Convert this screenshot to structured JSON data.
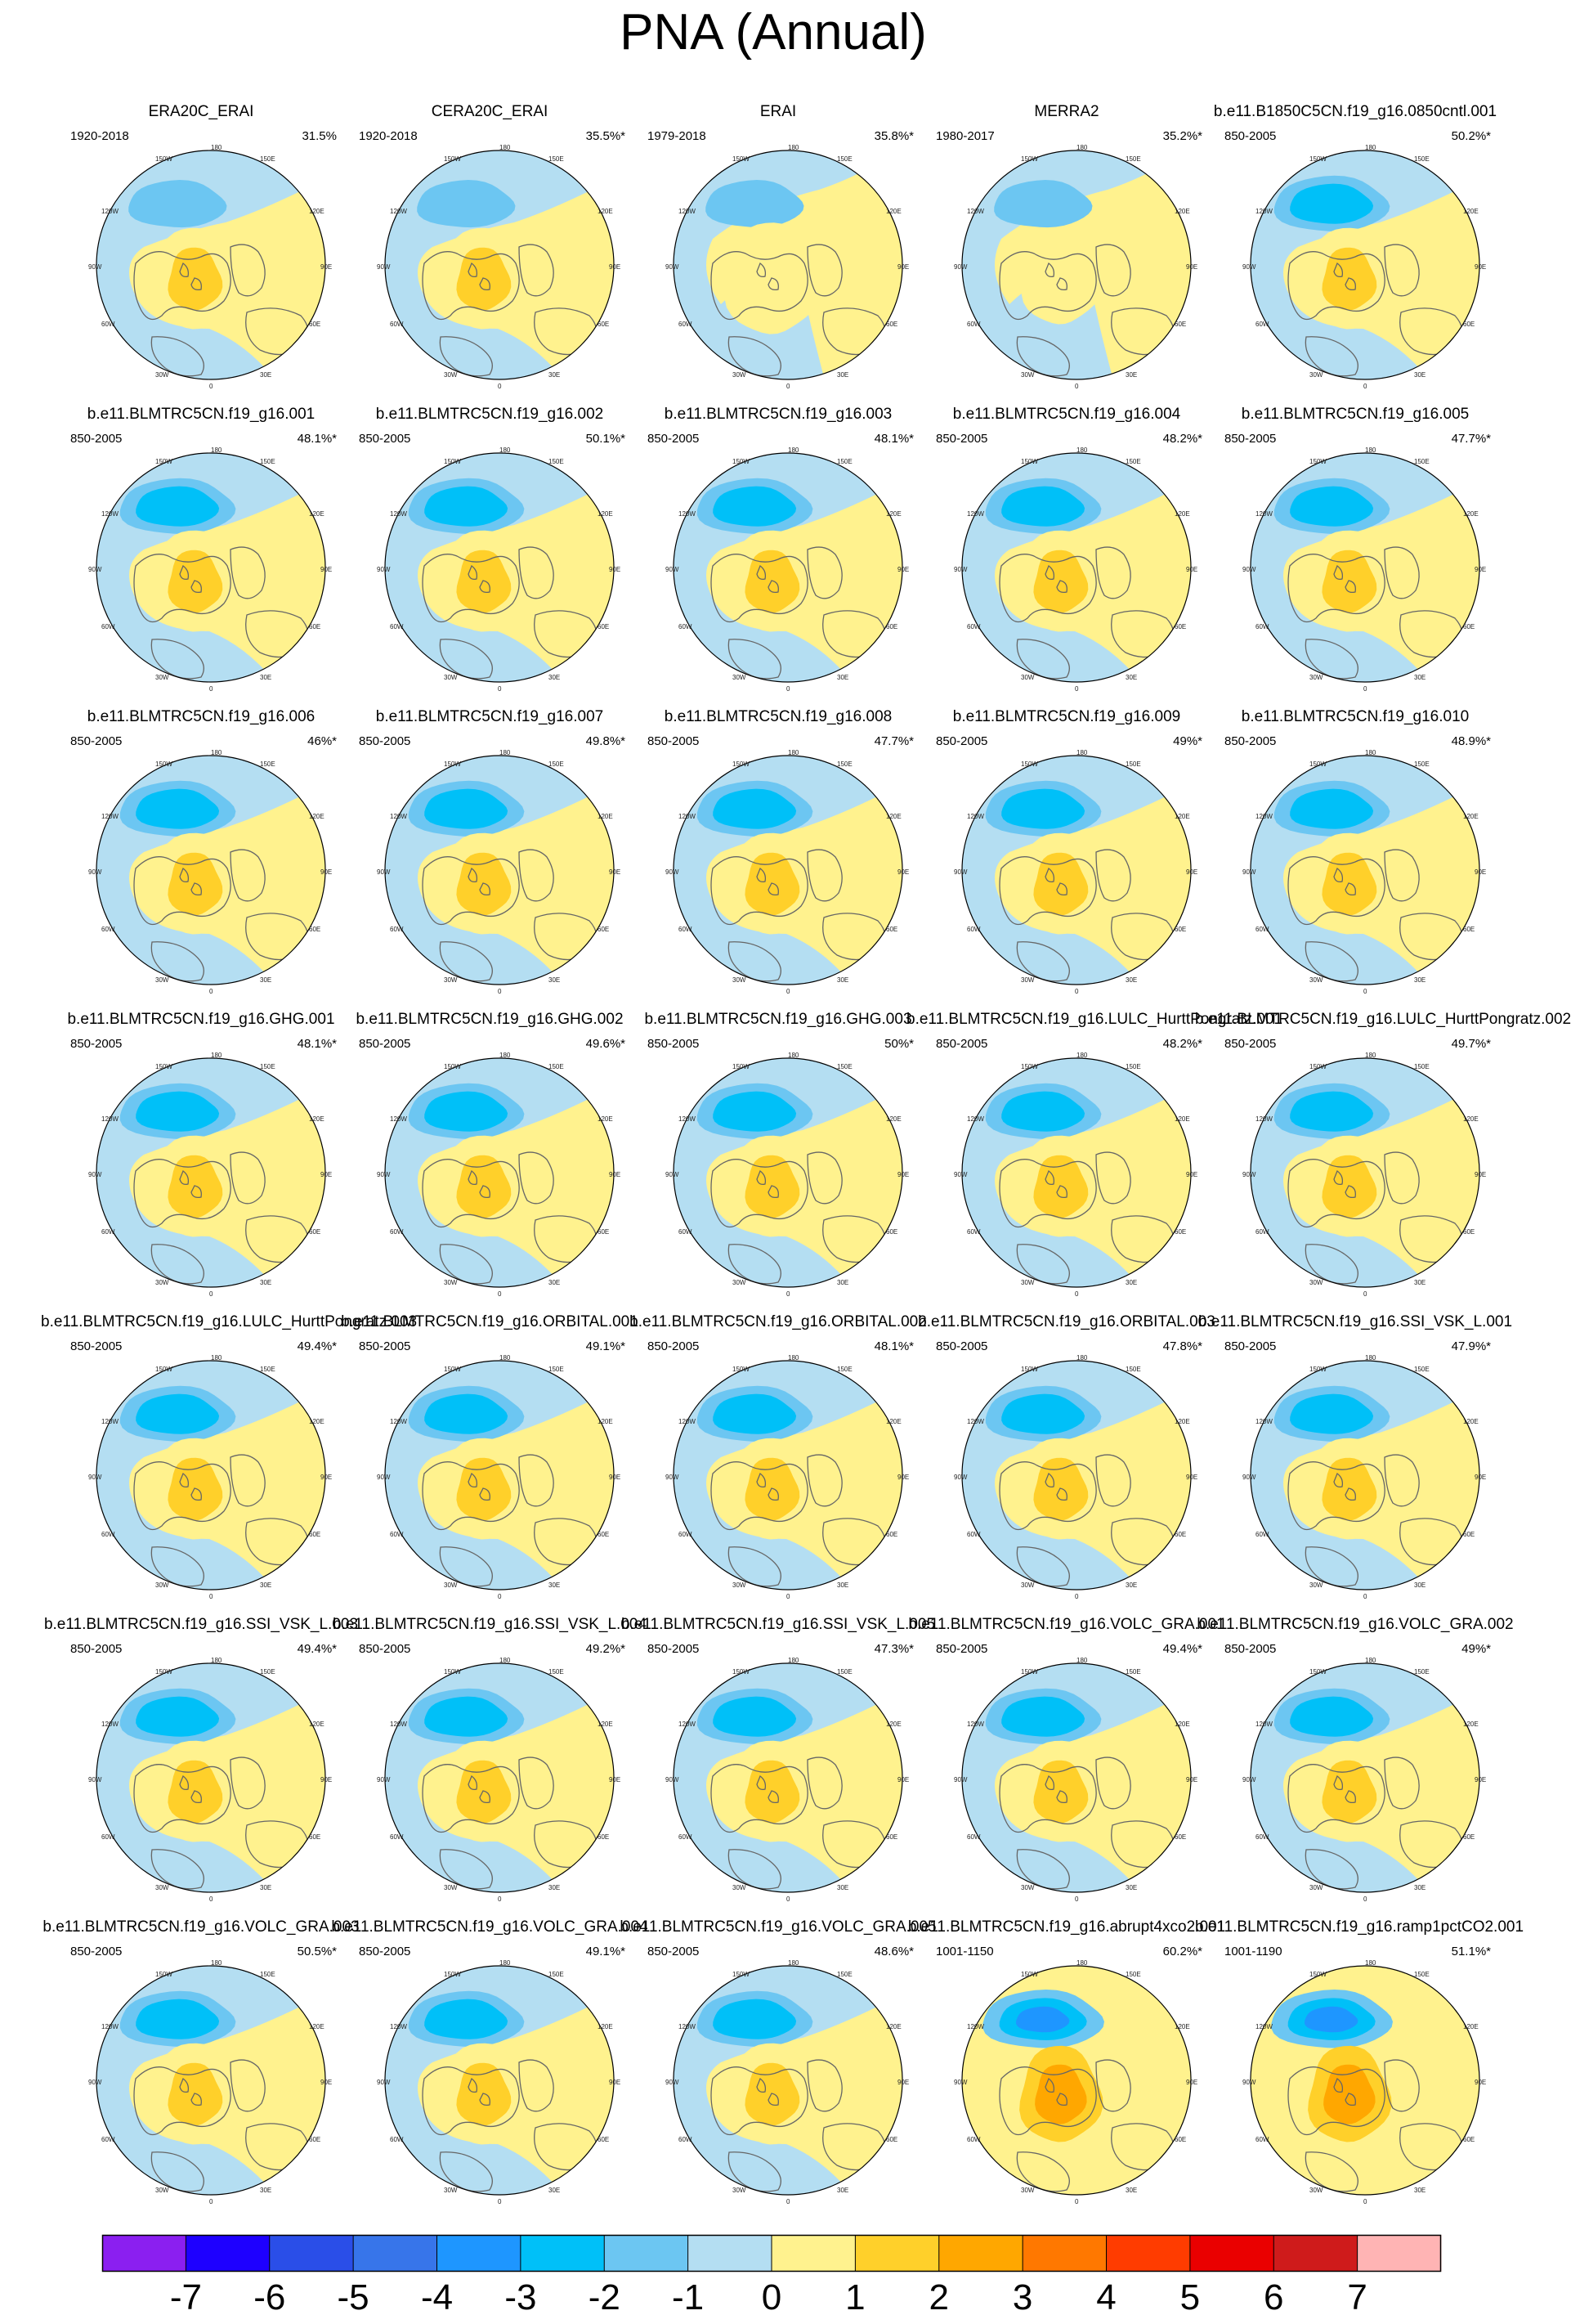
{
  "title": "PNA (Annual)",
  "colors": {
    "land_outline": "#666666",
    "map_edge": "#000000"
  },
  "longitude_labels": [
    "180",
    "150W",
    "150E",
    "120W",
    "120E",
    "90W",
    "90E",
    "60W",
    "60E",
    "30W",
    "30E",
    "0"
  ],
  "chart_data": {
    "type": "polar-contour-map-grid",
    "projection": "north-polar-stereographic",
    "variable": "PNA regression pattern (annual)",
    "panels": [
      {
        "title": "ERA20C_ERAI",
        "years": "1920-2018",
        "pct": "31.5%",
        "style": "obsA"
      },
      {
        "title": "CERA20C_ERAI",
        "years": "1920-2018",
        "pct": "35.5%*",
        "style": "obsA"
      },
      {
        "title": "ERAI",
        "years": "1979-2018",
        "pct": "35.8%*",
        "style": "obsB"
      },
      {
        "title": "MERRA2",
        "years": "1980-2017",
        "pct": "35.2%*",
        "style": "obsC"
      },
      {
        "title": "b.e11.B1850C5CN.f19_g16.0850cntl.001",
        "years": "850-2005",
        "pct": "50.2%*",
        "style": "model"
      },
      {
        "title": "b.e11.BLMTRC5CN.f19_g16.001",
        "years": "850-2005",
        "pct": "48.1%*",
        "style": "model"
      },
      {
        "title": "b.e11.BLMTRC5CN.f19_g16.002",
        "years": "850-2005",
        "pct": "50.1%*",
        "style": "model"
      },
      {
        "title": "b.e11.BLMTRC5CN.f19_g16.003",
        "years": "850-2005",
        "pct": "48.1%*",
        "style": "model"
      },
      {
        "title": "b.e11.BLMTRC5CN.f19_g16.004",
        "years": "850-2005",
        "pct": "48.2%*",
        "style": "model"
      },
      {
        "title": "b.e11.BLMTRC5CN.f19_g16.005",
        "years": "850-2005",
        "pct": "47.7%*",
        "style": "model"
      },
      {
        "title": "b.e11.BLMTRC5CN.f19_g16.006",
        "years": "850-2005",
        "pct": "46%*",
        "style": "model"
      },
      {
        "title": "b.e11.BLMTRC5CN.f19_g16.007",
        "years": "850-2005",
        "pct": "49.8%*",
        "style": "model"
      },
      {
        "title": "b.e11.BLMTRC5CN.f19_g16.008",
        "years": "850-2005",
        "pct": "47.7%*",
        "style": "model"
      },
      {
        "title": "b.e11.BLMTRC5CN.f19_g16.009",
        "years": "850-2005",
        "pct": "49%*",
        "style": "model"
      },
      {
        "title": "b.e11.BLMTRC5CN.f19_g16.010",
        "years": "850-2005",
        "pct": "48.9%*",
        "style": "model"
      },
      {
        "title": "b.e11.BLMTRC5CN.f19_g16.GHG.001",
        "years": "850-2005",
        "pct": "48.1%*",
        "style": "model"
      },
      {
        "title": "b.e11.BLMTRC5CN.f19_g16.GHG.002",
        "years": "850-2005",
        "pct": "49.6%*",
        "style": "model"
      },
      {
        "title": "b.e11.BLMTRC5CN.f19_g16.GHG.003",
        "years": "850-2005",
        "pct": "50%*",
        "style": "model"
      },
      {
        "title": "b.e11.BLMTRC5CN.f19_g16.LULC_HurttPongratz.001",
        "years": "850-2005",
        "pct": "48.2%*",
        "style": "model"
      },
      {
        "title": "b.e11.BLMTRC5CN.f19_g16.LULC_HurttPongratz.002",
        "years": "850-2005",
        "pct": "49.7%*",
        "style": "model"
      },
      {
        "title": "b.e11.BLMTRC5CN.f19_g16.LULC_HurttPongratz.003",
        "years": "850-2005",
        "pct": "49.4%*",
        "style": "model"
      },
      {
        "title": "b.e11.BLMTRC5CN.f19_g16.ORBITAL.001",
        "years": "850-2005",
        "pct": "49.1%*",
        "style": "model"
      },
      {
        "title": "b.e11.BLMTRC5CN.f19_g16.ORBITAL.002",
        "years": "850-2005",
        "pct": "48.1%*",
        "style": "model"
      },
      {
        "title": "b.e11.BLMTRC5CN.f19_g16.ORBITAL.003",
        "years": "850-2005",
        "pct": "47.8%*",
        "style": "model"
      },
      {
        "title": "b.e11.BLMTRC5CN.f19_g16.SSI_VSK_L.001",
        "years": "850-2005",
        "pct": "47.9%*",
        "style": "model"
      },
      {
        "title": "b.e11.BLMTRC5CN.f19_g16.SSI_VSK_L.003",
        "years": "850-2005",
        "pct": "49.4%*",
        "style": "model"
      },
      {
        "title": "b.e11.BLMTRC5CN.f19_g16.SSI_VSK_L.004",
        "years": "850-2005",
        "pct": "49.2%*",
        "style": "model"
      },
      {
        "title": "b.e11.BLMTRC5CN.f19_g16.SSI_VSK_L.005",
        "years": "850-2005",
        "pct": "47.3%*",
        "style": "model"
      },
      {
        "title": "b.e11.BLMTRC5CN.f19_g16.VOLC_GRA.001",
        "years": "850-2005",
        "pct": "49.4%*",
        "style": "model"
      },
      {
        "title": "b.e11.BLMTRC5CN.f19_g16.VOLC_GRA.002",
        "years": "850-2005",
        "pct": "49%*",
        "style": "model"
      },
      {
        "title": "b.e11.BLMTRC5CN.f19_g16.VOLC_GRA.003",
        "years": "850-2005",
        "pct": "50.5%*",
        "style": "model"
      },
      {
        "title": "b.e11.BLMTRC5CN.f19_g16.VOLC_GRA.004",
        "years": "850-2005",
        "pct": "49.1%*",
        "style": "model"
      },
      {
        "title": "b.e11.BLMTRC5CN.f19_g16.VOLC_GRA.005",
        "years": "850-2005",
        "pct": "48.6%*",
        "style": "model"
      },
      {
        "title": "b.e11.BLMTRC5CN.f19_g16.abrupt4xco2.001",
        "years": "1001-1150",
        "pct": "60.2%*",
        "style": "strong"
      },
      {
        "title": "b.e11.BLMTRC5CN.f19_g16.ramp1pctCO2.001",
        "years": "1001-1190",
        "pct": "51.1%*",
        "style": "strong"
      }
    ],
    "colorbar": {
      "levels": [
        -7,
        -6,
        -5,
        -4,
        -3,
        -2,
        -1,
        0,
        1,
        2,
        3,
        4,
        5,
        6,
        7
      ],
      "colors": [
        "#8b1ff0",
        "#1e00ff",
        "#2a4ee8",
        "#3775ea",
        "#1e96ff",
        "#00c0f8",
        "#6cc6f2",
        "#b4def2",
        "#fff28e",
        "#ffd02a",
        "#ffa700",
        "#ff7800",
        "#ff3c00",
        "#ea0000",
        "#cf1b1b",
        "#ffb4b4"
      ]
    }
  }
}
